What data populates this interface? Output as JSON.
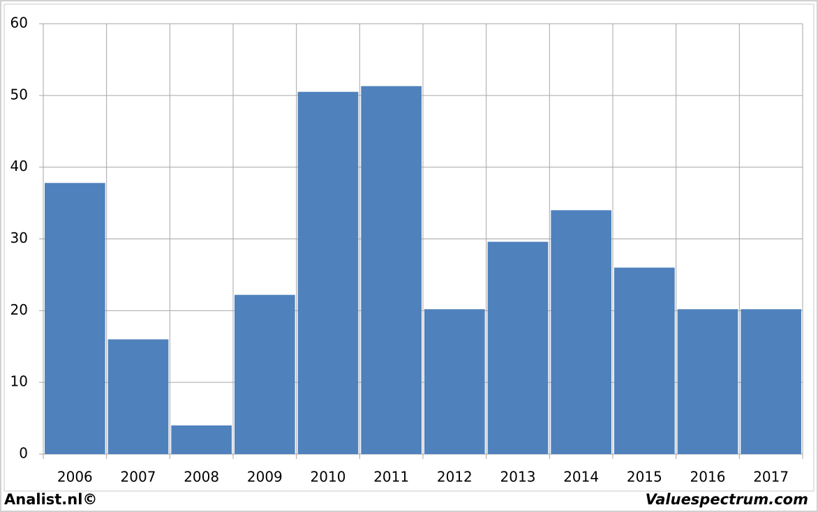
{
  "chart_data": {
    "type": "bar",
    "categories": [
      "2006",
      "2007",
      "2008",
      "2009",
      "2010",
      "2011",
      "2012",
      "2013",
      "2014",
      "2015",
      "2016",
      "2017"
    ],
    "values": [
      37.8,
      16,
      4,
      22.2,
      50.5,
      51.3,
      20.2,
      29.6,
      34,
      26,
      20.2,
      20.2
    ],
    "color": "#4f81bd",
    "ylim": [
      0,
      60
    ],
    "yticks": [
      0,
      10,
      20,
      30,
      40,
      50,
      60
    ],
    "grid": true,
    "credits": [
      "Analist.nl©",
      "Valuespectrum.com"
    ]
  }
}
